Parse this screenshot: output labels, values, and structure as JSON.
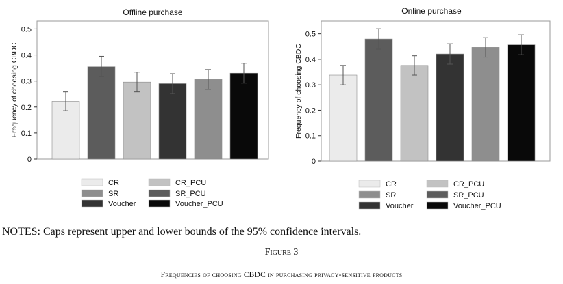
{
  "chart_data": [
    {
      "type": "bar",
      "title": "Offline purchase",
      "xlabel": "",
      "ylabel": "Frequency of choosing CBDC",
      "ylim": [
        0,
        0.53
      ],
      "yticks": [
        0,
        0.1,
        0.2,
        0.3,
        0.4,
        0.5
      ],
      "ytick_labels": [
        "0",
        "0.1",
        "0.2",
        "0.3",
        "0.4",
        "0.5"
      ],
      "categories": [
        "CR",
        "SR",
        "Voucher",
        "CR_PCU",
        "SR_PCU",
        "Voucher_PCU"
      ],
      "bar_order": [
        "CR",
        "CR_PCU",
        "SR",
        "SR_PCU",
        "Voucher",
        "Voucher_PCU"
      ],
      "values": [
        0.222,
        0.296,
        0.306,
        0.355,
        0.29,
        0.33
      ],
      "ci_lower": [
        0.186,
        0.258,
        0.268,
        0.317,
        0.252,
        0.292
      ],
      "ci_upper": [
        0.258,
        0.334,
        0.344,
        0.395,
        0.328,
        0.368
      ],
      "colors": [
        "#ebebeb",
        "#c2c2c2",
        "#8e8e8e",
        "#5c5c5c",
        "#333333",
        "#090909"
      ],
      "legend": {
        "placement": "bottom",
        "entries": [
          {
            "label": "CR",
            "color": "#ebebeb"
          },
          {
            "label": "CR_PCU",
            "color": "#c2c2c2"
          },
          {
            "label": "SR",
            "color": "#8e8e8e"
          },
          {
            "label": "SR_PCU",
            "color": "#5c5c5c"
          },
          {
            "label": "Voucher",
            "color": "#333333"
          },
          {
            "label": "Voucher_PCU",
            "color": "#090909"
          }
        ]
      }
    },
    {
      "type": "bar",
      "title": "Online purchase",
      "xlabel": "",
      "ylabel": "Frequency of choosing CBDC",
      "ylim": [
        0,
        0.55
      ],
      "yticks": [
        0,
        0.1,
        0.2,
        0.3,
        0.4,
        0.5
      ],
      "ytick_labels": [
        "0",
        "0.1",
        "0.2",
        "0.3",
        "0.4",
        "0.5"
      ],
      "categories": [
        "CR",
        "SR",
        "Voucher",
        "CR_PCU",
        "SR_PCU",
        "Voucher_PCU"
      ],
      "bar_order": [
        "CR",
        "CR_PCU",
        "SR",
        "SR_PCU",
        "Voucher",
        "Voucher_PCU"
      ],
      "values": [
        0.338,
        0.376,
        0.447,
        0.48,
        0.421,
        0.457
      ],
      "ci_lower": [
        0.3,
        0.338,
        0.409,
        0.44,
        0.381,
        0.418
      ],
      "ci_upper": [
        0.376,
        0.414,
        0.485,
        0.52,
        0.461,
        0.496
      ],
      "colors": [
        "#ebebeb",
        "#c2c2c2",
        "#8e8e8e",
        "#5c5c5c",
        "#333333",
        "#090909"
      ],
      "legend": {
        "placement": "bottom",
        "entries": [
          {
            "label": "CR",
            "color": "#ebebeb"
          },
          {
            "label": "CR_PCU",
            "color": "#c2c2c2"
          },
          {
            "label": "SR",
            "color": "#8e8e8e"
          },
          {
            "label": "SR_PCU",
            "color": "#5c5c5c"
          },
          {
            "label": "Voucher",
            "color": "#333333"
          },
          {
            "label": "Voucher_PCU",
            "color": "#090909"
          }
        ]
      }
    }
  ],
  "notes": "NOTES: Caps represent upper and lower bounds of the 95% confidence intervals.",
  "figure": {
    "label": "Figure 3",
    "caption": "Frequencies of choosing CBDC in purchasing privacy-sensitive products"
  }
}
